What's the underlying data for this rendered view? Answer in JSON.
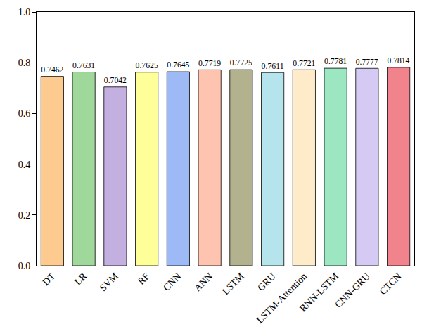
{
  "chart_data": {
    "type": "bar",
    "categories": [
      "DT",
      "LR",
      "SVM",
      "RF",
      "CNN",
      "ANN",
      "LSTM",
      "GRU",
      "LSTM-Attention",
      "RNN-LSTM",
      "CNN-GRU",
      "CTCN"
    ],
    "values": [
      0.7462,
      0.7631,
      0.7042,
      0.7625,
      0.7645,
      0.7719,
      0.7725,
      0.7611,
      0.7721,
      0.7781,
      0.7777,
      0.7814
    ],
    "colors": [
      "#fdcb90",
      "#9fd89a",
      "#c4b0e0",
      "#ffff99",
      "#9dbaf7",
      "#ffc4b0",
      "#b2b38e",
      "#b5e4ec",
      "#fdebc9",
      "#9de6c2",
      "#d4caf4",
      "#f0838b"
    ],
    "ylim": [
      0,
      1.0
    ],
    "yticks": [
      {
        "value": 0,
        "label": "0.0"
      },
      0.2,
      0.4,
      0.6,
      0.8,
      {
        "value": 1.0,
        "label": "1.0"
      }
    ],
    "data_labels": true,
    "grid": false
  }
}
